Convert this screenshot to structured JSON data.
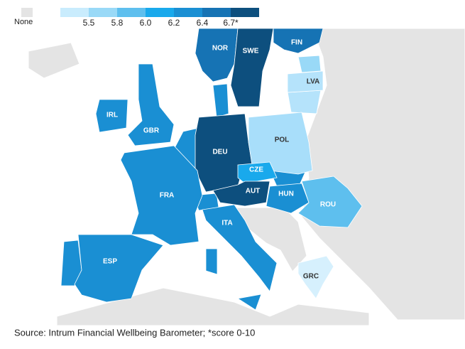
{
  "legend": {
    "none_label": "None",
    "none_color": "#e4e4e4",
    "colors": [
      "#c9ecfd",
      "#99d9f7",
      "#5ebfee",
      "#19a9ec",
      "#1a8fd3",
      "#1673b4",
      "#0d4f7e"
    ],
    "labels": [
      "5.5",
      "5.8",
      "6.0",
      "6.2",
      "6.4",
      "6.7*"
    ]
  },
  "countries": [
    {
      "label": "NOR",
      "color": "#1673b4"
    },
    {
      "label": "SWE",
      "color": "#0d4f7e"
    },
    {
      "label": "FIN",
      "color": "#1673b4"
    },
    {
      "label": "LVA",
      "color": "#b5e3fb"
    },
    {
      "label": "IRL",
      "color": "#1a8fd3"
    },
    {
      "label": "GBR",
      "color": "#1a8fd3"
    },
    {
      "label": "DEU",
      "color": "#0d4f7e"
    },
    {
      "label": "POL",
      "color": "#a8defa"
    },
    {
      "label": "CZE",
      "color": "#19a9ec"
    },
    {
      "label": "FRA",
      "color": "#1a8fd3"
    },
    {
      "label": "AUT",
      "color": "#0d4f7e"
    },
    {
      "label": "HUN",
      "color": "#1a8fd3"
    },
    {
      "label": "ROU",
      "color": "#5ebfee"
    },
    {
      "label": "ITA",
      "color": "#1a8fd3"
    },
    {
      "label": "ESP",
      "color": "#1a8fd3"
    },
    {
      "label": "GRC",
      "color": "#d6f0fd"
    }
  ],
  "source": "Source: Intrum Financial Wellbeing Barometer; *score 0-10"
}
